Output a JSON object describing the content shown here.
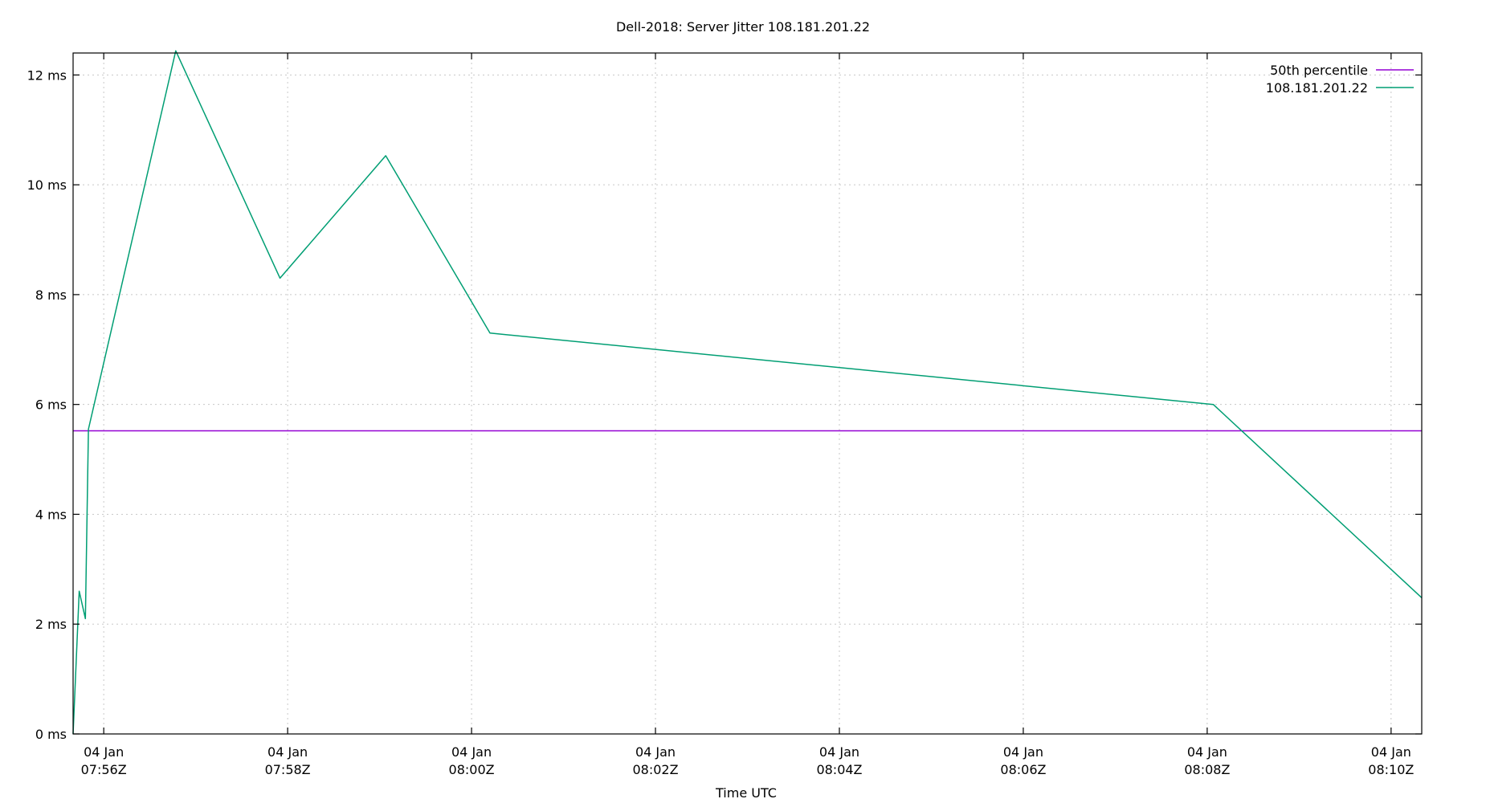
{
  "chart_data": {
    "type": "line",
    "title": "Dell-2018: Server Jitter 108.181.201.22",
    "xlabel": "Time UTC",
    "ylabel": "",
    "xlim": [
      "2019-01-04T07:55:40Z",
      "2019-01-04T08:10:20Z"
    ],
    "ylim": [
      0,
      12.4
    ],
    "grid": true,
    "legend_position": "top-right",
    "x_ticks": [
      {
        "t": "2019-01-04T07:56:00Z",
        "line1": "04 Jan",
        "line2": "07:56Z"
      },
      {
        "t": "2019-01-04T07:58:00Z",
        "line1": "04 Jan",
        "line2": "07:58Z"
      },
      {
        "t": "2019-01-04T08:00:00Z",
        "line1": "04 Jan",
        "line2": "08:00Z"
      },
      {
        "t": "2019-01-04T08:02:00Z",
        "line1": "04 Jan",
        "line2": "08:02Z"
      },
      {
        "t": "2019-01-04T08:04:00Z",
        "line1": "04 Jan",
        "line2": "08:04Z"
      },
      {
        "t": "2019-01-04T08:06:00Z",
        "line1": "04 Jan",
        "line2": "08:06Z"
      },
      {
        "t": "2019-01-04T08:08:00Z",
        "line1": "04 Jan",
        "line2": "08:08Z"
      },
      {
        "t": "2019-01-04T08:10:00Z",
        "line1": "04 Jan",
        "line2": "08:10Z"
      }
    ],
    "y_ticks": [
      {
        "v": 0,
        "label": "0 ms"
      },
      {
        "v": 2,
        "label": "2 ms"
      },
      {
        "v": 4,
        "label": "4 ms"
      },
      {
        "v": 6,
        "label": "6 ms"
      },
      {
        "v": 8,
        "label": "8 ms"
      },
      {
        "v": 10,
        "label": "10 ms"
      },
      {
        "v": 12,
        "label": "12 ms"
      }
    ],
    "series": [
      {
        "name": "50th percentile",
        "color": "#9400d3",
        "kind": "hline",
        "y": 5.52
      },
      {
        "name": "108.181.201.22",
        "color": "#009e73",
        "kind": "line",
        "points": [
          {
            "t": "2019-01-04T07:55:40Z",
            "y": 0.0
          },
          {
            "t": "2019-01-04T07:55:44Z",
            "y": 2.6
          },
          {
            "t": "2019-01-04T07:55:48Z",
            "y": 2.1
          },
          {
            "t": "2019-01-04T07:55:50Z",
            "y": 5.55
          },
          {
            "t": "2019-01-04T07:56:47Z",
            "y": 12.44
          },
          {
            "t": "2019-01-04T07:57:55Z",
            "y": 8.3
          },
          {
            "t": "2019-01-04T07:59:04Z",
            "y": 10.53
          },
          {
            "t": "2019-01-04T08:00:12Z",
            "y": 7.3
          },
          {
            "t": "2019-01-04T08:08:04Z",
            "y": 6.0
          },
          {
            "t": "2019-01-04T08:10:20Z",
            "y": 2.48
          }
        ]
      }
    ]
  }
}
